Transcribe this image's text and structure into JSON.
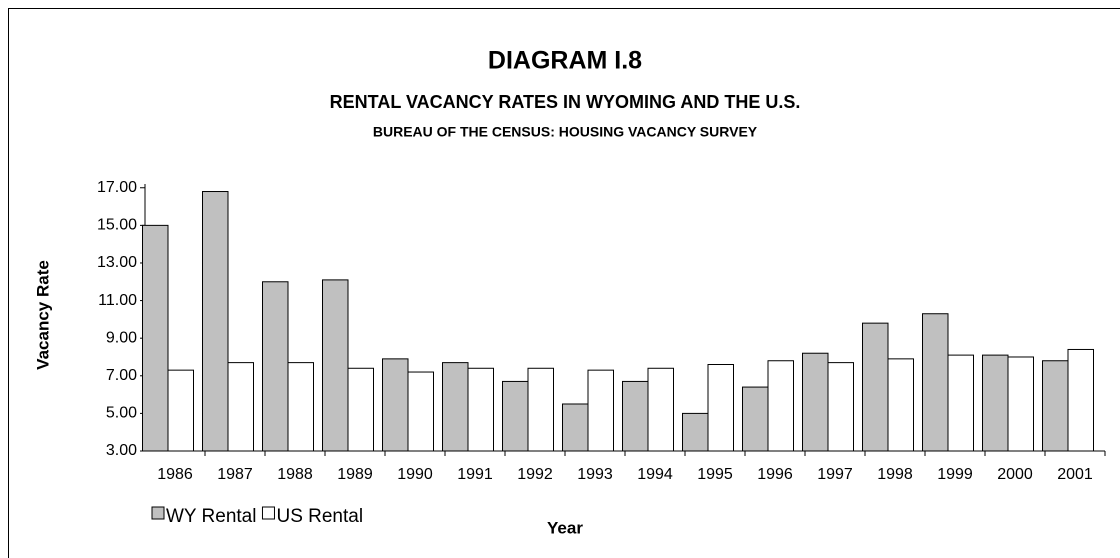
{
  "chart_data": {
    "type": "bar",
    "title": "DIAGRAM I.8",
    "subtitle": "RENTAL VACANCY RATES IN WYOMING AND THE U.S.",
    "source": "BUREAU OF THE CENSUS: HOUSING VACANCY SURVEY",
    "x_label": "Year",
    "y_label": "Vacancy Rate",
    "categories": [
      "1986",
      "1987",
      "1988",
      "1989",
      "1990",
      "1991",
      "1992",
      "1993",
      "1994",
      "1995",
      "1996",
      "1997",
      "1998",
      "1999",
      "2000",
      "2001"
    ],
    "series": [
      {
        "name": "WY Rental",
        "color": "#c0c0c0",
        "values": [
          15.0,
          16.8,
          12.0,
          12.1,
          7.9,
          7.7,
          6.7,
          5.5,
          6.7,
          5.0,
          6.4,
          8.2,
          9.8,
          10.3,
          8.1,
          7.8
        ]
      },
      {
        "name": "US Rental",
        "color": "#ffffff",
        "values": [
          7.3,
          7.7,
          7.7,
          7.4,
          7.2,
          7.4,
          7.4,
          7.3,
          7.4,
          7.6,
          7.8,
          7.7,
          7.9,
          8.1,
          8.0,
          8.4
        ]
      }
    ],
    "ylim": [
      3,
      17.2
    ],
    "yticks": [
      {
        "value": 3,
        "label": "3.00"
      },
      {
        "value": 5,
        "label": "5.00"
      },
      {
        "value": 7,
        "label": "7.00"
      },
      {
        "value": 9,
        "label": "9.00"
      },
      {
        "value": 11,
        "label": "11.00"
      },
      {
        "value": 13,
        "label": "13.00"
      },
      {
        "value": 15,
        "label": "15.00"
      },
      {
        "value": 17,
        "label": "17.00"
      }
    ],
    "legend": "bottom-left"
  }
}
